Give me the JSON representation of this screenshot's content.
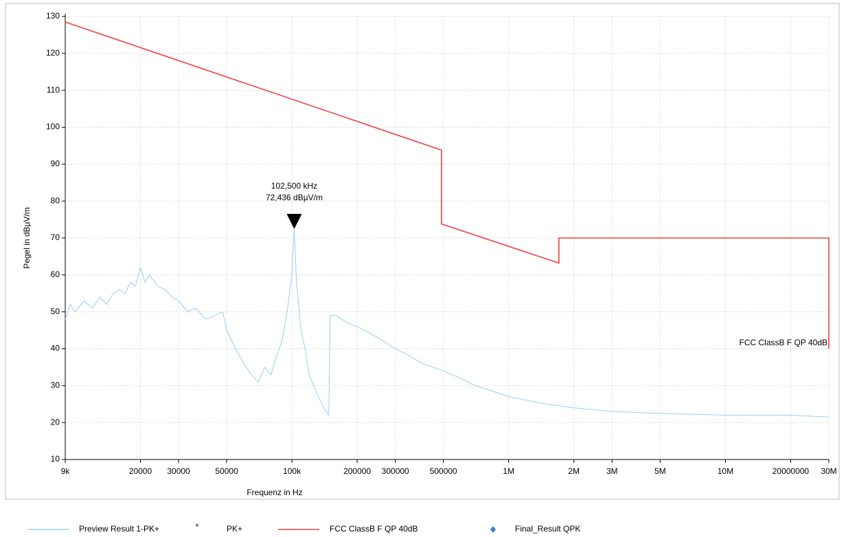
{
  "chart_data": {
    "type": "line",
    "x_label": "Frequenz in Hz",
    "y_label": "Pegel in dBµV/m",
    "xlog": true,
    "grid": true,
    "xlim": [
      9000,
      30000000
    ],
    "ylim": [
      10,
      130
    ],
    "xticks": [
      {
        "value": 9000,
        "label": "9k"
      },
      20000,
      30000,
      50000,
      {
        "value": 100000,
        "label": "100k"
      },
      200000,
      300000,
      500000,
      {
        "value": 1000000,
        "label": "1M"
      },
      {
        "value": 2000000,
        "label": "2M"
      },
      {
        "value": 3000000,
        "label": "3M"
      },
      {
        "value": 5000000,
        "label": "5M"
      },
      {
        "value": 10000000,
        "label": "10M"
      },
      20000000,
      {
        "value": 30000000,
        "label": "30M"
      }
    ],
    "yticks": [
      10,
      20,
      30,
      40,
      50,
      60,
      70,
      80,
      90,
      100,
      110,
      120,
      130
    ],
    "series": [
      {
        "name": "Preview Result 1-PK+",
        "color": "#99ccf5",
        "marker": "line",
        "x": [
          9000,
          9500,
          10000,
          11000,
          12000,
          13000,
          14000,
          15000,
          16000,
          17000,
          18000,
          19000,
          20000,
          21000,
          22000,
          24000,
          26000,
          28000,
          30000,
          33000,
          36000,
          40000,
          44000,
          48000,
          50000,
          55000,
          60000,
          65000,
          70000,
          75000,
          80000,
          85000,
          90000,
          95000,
          100000,
          102500,
          105000,
          110000,
          115000,
          120000,
          130000,
          140000,
          148000,
          150000,
          160000,
          180000,
          200000,
          250000,
          300000,
          350000,
          400000,
          500000,
          600000,
          700000,
          800000,
          1000000,
          1500000,
          2000000,
          3000000,
          5000000,
          10000000,
          20000000,
          30000000
        ],
        "values": [
          48,
          52,
          50,
          53,
          51,
          54,
          52,
          55,
          56,
          55,
          58,
          57,
          62,
          58,
          60,
          57,
          56,
          54,
          53,
          50,
          51,
          48,
          49,
          50,
          45,
          40,
          36,
          33,
          31,
          35,
          33,
          38,
          42,
          50,
          60,
          72.4,
          58,
          45,
          40,
          33,
          28,
          24,
          22,
          49,
          49,
          47,
          46,
          43,
          40,
          38,
          36,
          34,
          32,
          30,
          29,
          27,
          25,
          24,
          23,
          22.5,
          22,
          22,
          21.5
        ]
      },
      {
        "name": "PK+",
        "color": "#e03030",
        "marker": "asterisk",
        "x": [],
        "values": []
      },
      {
        "name": "FCC ClassB F QP 40dB",
        "color": "#f04040",
        "marker": "line",
        "x": [
          9000,
          490000,
          490000,
          1705000,
          1705000,
          30000000,
          30000000
        ],
        "values": [
          128.5,
          93.8,
          73.8,
          63.2,
          70,
          70,
          40
        ]
      },
      {
        "name": "Final_Result QPK",
        "color": "#3a7fd0",
        "marker": "diamond",
        "x": [],
        "values": []
      }
    ],
    "annotations": [
      {
        "x": 102500,
        "y": 72.436,
        "lines": [
          "102,500 kHz",
          "72,436 dBµV/m"
        ]
      }
    ]
  }
}
